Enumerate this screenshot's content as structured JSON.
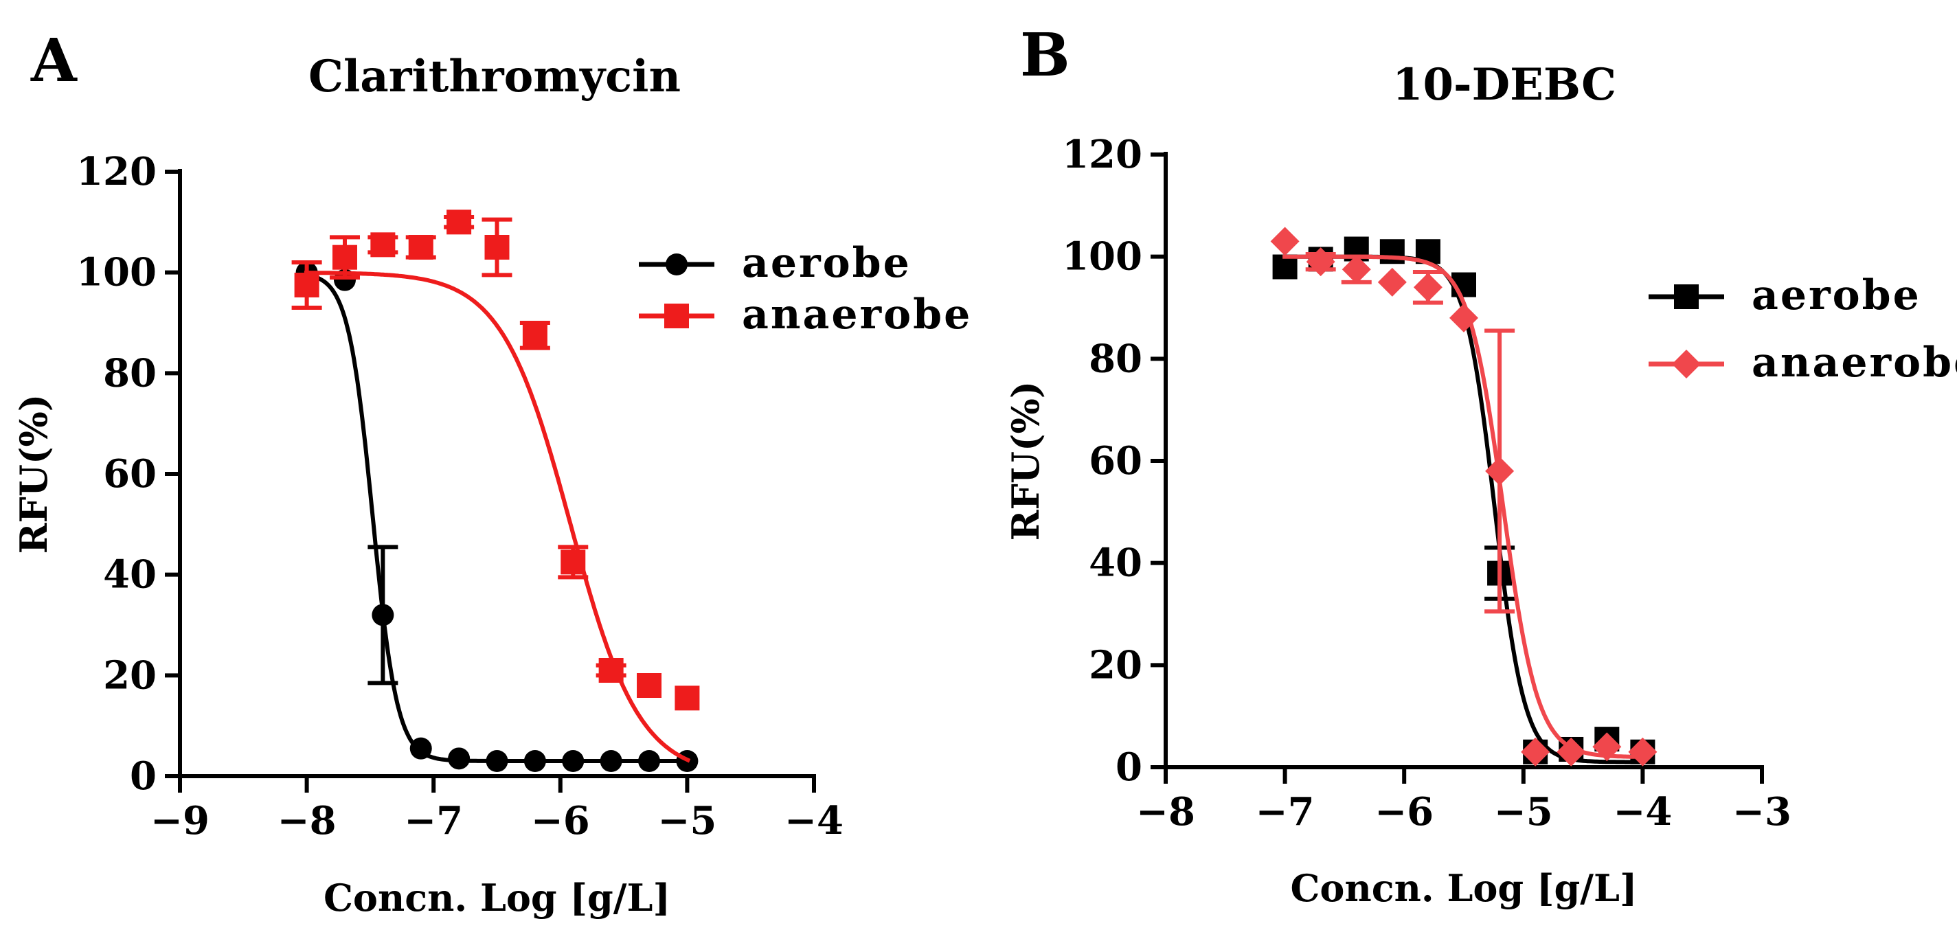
{
  "chart_data": [
    {
      "type": "scatter",
      "panel_label": "A",
      "title": "Clarithromycin",
      "xlabel": "Concn. Log [g/L]",
      "ylabel": "RFU(%)",
      "xlim": [
        -9,
        -4
      ],
      "ylim": [
        0,
        120
      ],
      "xticks": [
        -9,
        -8,
        -7,
        -6,
        -5,
        -4
      ],
      "yticks": [
        0,
        20,
        40,
        60,
        80,
        100,
        120
      ],
      "xtick_labels": [
        "−9",
        "−8",
        "−7",
        "−6",
        "−5",
        "−4"
      ],
      "ytick_labels": [
        "0",
        "20",
        "40",
        "60",
        "80",
        "100",
        "120"
      ],
      "grid": false,
      "legend_position": "top-right",
      "series": [
        {
          "name": "aerobe",
          "color": "#000000",
          "marker": "circle",
          "points": [
            {
              "x": -8.0,
              "y": 100,
              "err": 0
            },
            {
              "x": -7.7,
              "y": 98.5,
              "err": 0
            },
            {
              "x": -7.4,
              "y": 32,
              "err": 13.5
            },
            {
              "x": -7.1,
              "y": 5.5,
              "err": 0
            },
            {
              "x": -6.8,
              "y": 3.5,
              "err": 0
            },
            {
              "x": -6.5,
              "y": 3,
              "err": 0
            },
            {
              "x": -6.2,
              "y": 3,
              "err": 0
            },
            {
              "x": -5.9,
              "y": 3,
              "err": 0
            },
            {
              "x": -5.6,
              "y": 3,
              "err": 0
            },
            {
              "x": -5.3,
              "y": 3,
              "err": 0
            },
            {
              "x": -5.0,
              "y": 3,
              "err": 0
            }
          ],
          "fit": {
            "bottom": 3,
            "top": 100,
            "log_ic50": -7.48,
            "hill_slope": -4.5
          }
        },
        {
          "name": "anaerobe",
          "color": "#ee1c1c",
          "marker": "square",
          "points": [
            {
              "x": -8.0,
              "y": 97.5,
              "err": 4.5
            },
            {
              "x": -7.7,
              "y": 103,
              "err": 4
            },
            {
              "x": -7.4,
              "y": 105.5,
              "err": 1.5
            },
            {
              "x": -7.1,
              "y": 105,
              "err": 2
            },
            {
              "x": -6.8,
              "y": 110,
              "err": 1
            },
            {
              "x": -6.5,
              "y": 105,
              "err": 5.5
            },
            {
              "x": -6.2,
              "y": 87.5,
              "err": 2.5
            },
            {
              "x": -5.9,
              "y": 42.5,
              "err": 3
            },
            {
              "x": -5.6,
              "y": 21,
              "err": 1
            },
            {
              "x": -5.3,
              "y": 18,
              "err": 0
            },
            {
              "x": -5.0,
              "y": 15.5,
              "err": 0
            }
          ],
          "fit": {
            "bottom": 0,
            "top": 100,
            "log_ic50": -5.92,
            "hill_slope": -1.6
          }
        }
      ]
    },
    {
      "type": "scatter",
      "panel_label": "B",
      "title": "10-DEBC",
      "xlabel": "Concn. Log [g/L]",
      "ylabel": "RFU(%)",
      "xlim": [
        -8,
        -3
      ],
      "ylim": [
        0,
        120
      ],
      "xticks": [
        -8,
        -7,
        -6,
        -5,
        -4,
        -3
      ],
      "yticks": [
        0,
        20,
        40,
        60,
        80,
        100,
        120
      ],
      "xtick_labels": [
        "−8",
        "−7",
        "−6",
        "−5",
        "−4",
        "−3"
      ],
      "ytick_labels": [
        "0",
        "20",
        "40",
        "60",
        "80",
        "100",
        "120"
      ],
      "grid": false,
      "legend_position": "top-right",
      "series": [
        {
          "name": "aerobe",
          "color": "#000000",
          "marker": "square",
          "points": [
            {
              "x": -7.0,
              "y": 98,
              "err": 0
            },
            {
              "x": -6.7,
              "y": 99.5,
              "err": 0
            },
            {
              "x": -6.4,
              "y": 101.5,
              "err": 0
            },
            {
              "x": -6.1,
              "y": 101,
              "err": 0
            },
            {
              "x": -5.8,
              "y": 101,
              "err": 0
            },
            {
              "x": -5.5,
              "y": 94.5,
              "err": 0
            },
            {
              "x": -5.2,
              "y": 38,
              "err": 5
            },
            {
              "x": -4.9,
              "y": 3,
              "err": 0
            },
            {
              "x": -4.6,
              "y": 3.5,
              "err": 0
            },
            {
              "x": -4.3,
              "y": 5.5,
              "err": 0
            },
            {
              "x": -4.0,
              "y": 3,
              "err": 0
            }
          ],
          "fit": {
            "bottom": 1,
            "top": 100,
            "log_ic50": -5.24,
            "hill_slope": -3.5
          }
        },
        {
          "name": "anaerobe",
          "color": "#f0474c",
          "marker": "diamond",
          "points": [
            {
              "x": -7.0,
              "y": 103,
              "err": 0
            },
            {
              "x": -6.7,
              "y": 99,
              "err": 1.5
            },
            {
              "x": -6.4,
              "y": 97.5,
              "err": 2.5
            },
            {
              "x": -6.1,
              "y": 95,
              "err": 0
            },
            {
              "x": -5.8,
              "y": 94,
              "err": 3
            },
            {
              "x": -5.5,
              "y": 88,
              "err": 0
            },
            {
              "x": -5.2,
              "y": 58,
              "err": 27.5
            },
            {
              "x": -4.9,
              "y": 3,
              "err": 0
            },
            {
              "x": -4.6,
              "y": 3,
              "err": 0
            },
            {
              "x": -4.3,
              "y": 4,
              "err": 0
            },
            {
              "x": -4.0,
              "y": 3,
              "err": 0
            }
          ],
          "fit": {
            "bottom": 2,
            "top": 100,
            "log_ic50": -5.17,
            "hill_slope": -3.0
          }
        }
      ]
    }
  ]
}
